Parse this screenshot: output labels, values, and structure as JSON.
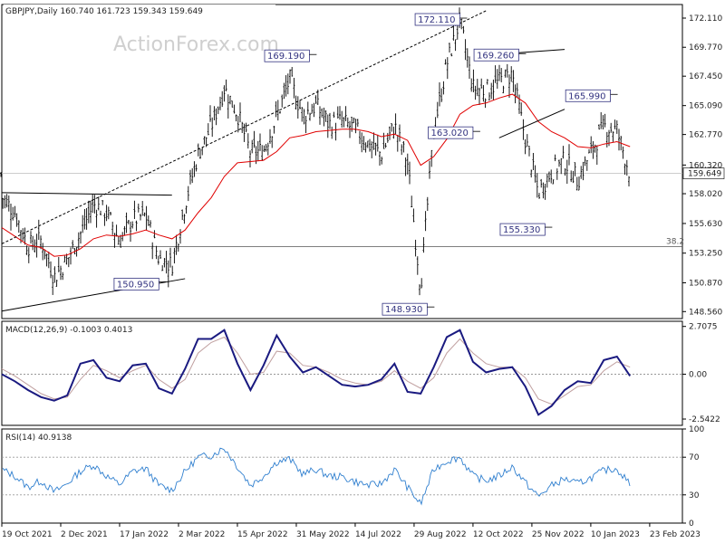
{
  "chart_data": [
    {
      "type": "ohlc",
      "title": "GBPJPY,Daily",
      "ohlc_readout": "160.740 161.723 159.343 159.649",
      "watermark": "ActionForex.com",
      "price_axis": {
        "ylim": [
          148.0,
          173.2
        ],
        "ticks": [
          "172.110",
          "169.770",
          "167.450",
          "165.090",
          "162.770",
          "160.320",
          "158.020",
          "155.630",
          "153.250",
          "150.870",
          "148.560"
        ],
        "last_price": "159.649"
      },
      "fib_label": "38.2",
      "fib_level": 153.78,
      "last_price_line": 159.649,
      "annotations": [
        {
          "label": "172.110",
          "value": 172.11,
          "date_index": 35
        },
        {
          "label": "169.190",
          "value": 169.19,
          "date_index": 23.5
        },
        {
          "label": "169.260",
          "value": 169.26,
          "date_index": 39.5
        },
        {
          "label": "165.990",
          "value": 165.99,
          "date_index": 46.5
        },
        {
          "label": "163.020",
          "value": 163.02,
          "date_index": 36
        },
        {
          "label": "155.330",
          "value": 155.33,
          "date_index": 41.5
        },
        {
          "label": "150.950",
          "value": 150.95,
          "date_index": 12
        },
        {
          "label": "148.930",
          "value": 148.93,
          "date_index": 32.5
        }
      ],
      "close_path": [
        [
          0,
          157.8
        ],
        [
          1,
          156.5
        ],
        [
          2,
          153.8
        ],
        [
          3,
          154.3
        ],
        [
          4,
          151.3
        ],
        [
          5,
          152.7
        ],
        [
          6,
          154.8
        ],
        [
          7,
          157.2
        ],
        [
          8,
          156.5
        ],
        [
          9,
          154.2
        ],
        [
          10,
          155.9
        ],
        [
          11,
          156.3
        ],
        [
          12,
          152.8
        ],
        [
          13,
          152.3
        ],
        [
          14,
          157.2
        ],
        [
          15,
          161.2
        ],
        [
          16,
          163.4
        ],
        [
          17,
          166.5
        ],
        [
          18,
          164.5
        ],
        [
          19,
          161.3
        ],
        [
          20,
          161.5
        ],
        [
          21,
          164.2
        ],
        [
          22,
          167.2
        ],
        [
          23,
          164.3
        ],
        [
          24,
          165.1
        ],
        [
          25,
          163.6
        ],
        [
          26,
          163.8
        ],
        [
          27,
          163.2
        ],
        [
          28,
          162.0
        ],
        [
          29,
          161.2
        ],
        [
          30,
          163.5
        ],
        [
          31,
          160.5
        ],
        [
          32,
          150.5
        ],
        [
          33,
          163.0
        ],
        [
          34,
          168.4
        ],
        [
          35,
          171.9
        ],
        [
          36,
          166.5
        ],
        [
          37,
          166.3
        ],
        [
          38,
          167.0
        ],
        [
          39,
          167.6
        ],
        [
          40,
          162.4
        ],
        [
          41,
          158.1
        ],
        [
          42,
          159.8
        ],
        [
          43,
          160.7
        ],
        [
          44,
          159.1
        ],
        [
          45,
          161.3
        ],
        [
          46,
          163.4
        ],
        [
          47,
          163.1
        ],
        [
          48,
          159.6
        ]
      ],
      "ema_path": [
        [
          0,
          155.3
        ],
        [
          1,
          154.6
        ],
        [
          2,
          153.9
        ],
        [
          3,
          153.7
        ],
        [
          4,
          153.0
        ],
        [
          5,
          153.1
        ],
        [
          6,
          153.6
        ],
        [
          7,
          154.4
        ],
        [
          8,
          154.7
        ],
        [
          9,
          154.6
        ],
        [
          10,
          154.8
        ],
        [
          11,
          155.1
        ],
        [
          12,
          154.7
        ],
        [
          13,
          154.4
        ],
        [
          14,
          155.1
        ],
        [
          15,
          156.5
        ],
        [
          16,
          157.7
        ],
        [
          17,
          159.4
        ],
        [
          18,
          160.5
        ],
        [
          19,
          160.6
        ],
        [
          20,
          160.7
        ],
        [
          21,
          161.4
        ],
        [
          22,
          162.5
        ],
        [
          23,
          162.7
        ],
        [
          24,
          163.0
        ],
        [
          25,
          163.1
        ],
        [
          26,
          163.2
        ],
        [
          27,
          163.2
        ],
        [
          28,
          163.0
        ],
        [
          29,
          162.6
        ],
        [
          30,
          162.8
        ],
        [
          31,
          162.3
        ],
        [
          32,
          160.3
        ],
        [
          33,
          161.0
        ],
        [
          34,
          162.4
        ],
        [
          35,
          164.4
        ],
        [
          36,
          165.1
        ],
        [
          37,
          165.3
        ],
        [
          38,
          165.7
        ],
        [
          39,
          166.0
        ],
        [
          40,
          165.3
        ],
        [
          41,
          163.8
        ],
        [
          42,
          163.0
        ],
        [
          43,
          162.5
        ],
        [
          44,
          161.8
        ],
        [
          45,
          161.7
        ],
        [
          46,
          162.0
        ],
        [
          47,
          162.2
        ],
        [
          48,
          161.8
        ]
      ],
      "trendlines": [
        {
          "name": "rising-channel-upper",
          "points": [
            [
              0,
              154.0
            ],
            [
              37,
              172.7
            ]
          ],
          "style": "dashed"
        },
        {
          "name": "triangle-upper",
          "points": [
            [
              0,
              158.1
            ],
            [
              13,
              157.9
            ]
          ],
          "style": "solid"
        },
        {
          "name": "triangle-lower",
          "points": [
            [
              0,
              148.6
            ],
            [
              14,
              151.2
            ]
          ],
          "style": "solid"
        },
        {
          "name": "wedge-upper",
          "points": [
            [
              39,
              169.3
            ],
            [
              43,
              169.6
            ]
          ],
          "style": "solid"
        },
        {
          "name": "wedge-lower",
          "points": [
            [
              38,
              162.5
            ],
            [
              43,
              164.8
            ]
          ],
          "style": "solid"
        }
      ],
      "x_axis": {
        "labels": [
          "19 Oct 2021",
          "2 Dec 2021",
          "17 Jan 2022",
          "2 Mar 2022",
          "15 Apr 2022",
          "31 May 2022",
          "14 Jul 2022",
          "29 Aug 2022",
          "12 Oct 2022",
          "25 Nov 2022",
          "10 Jan 2023",
          "23 Feb 2023"
        ],
        "label_indices": [
          0,
          4.5,
          9,
          13.5,
          18,
          22.5,
          27,
          31.5,
          36,
          40.5,
          45,
          49.5
        ],
        "domain": [
          0,
          52
        ]
      }
    },
    {
      "type": "line",
      "title": "MACD(12,26,9) -0.1003 0.4013",
      "ylim": [
        -2.9,
        3.0
      ],
      "ticks": [
        "2.7075",
        "0.00",
        "-2.5422"
      ],
      "zero_label": "0.00",
      "series": [
        {
          "name": "MACD",
          "color": "#1a1a80",
          "values": [
            [
              0,
              0.0
            ],
            [
              1,
              -0.4
            ],
            [
              2,
              -0.9
            ],
            [
              3,
              -1.3
            ],
            [
              4,
              -1.5
            ],
            [
              5,
              -1.2
            ],
            [
              6,
              0.6
            ],
            [
              7,
              0.8
            ],
            [
              8,
              -0.2
            ],
            [
              9,
              -0.4
            ],
            [
              10,
              0.5
            ],
            [
              11,
              0.6
            ],
            [
              12,
              -0.8
            ],
            [
              13,
              -1.1
            ],
            [
              14,
              0.3
            ],
            [
              15,
              2.0
            ],
            [
              16,
              2.0
            ],
            [
              17,
              2.5
            ],
            [
              18,
              0.6
            ],
            [
              19,
              -0.9
            ],
            [
              20,
              0.5
            ],
            [
              21,
              2.2
            ],
            [
              22,
              1.0
            ],
            [
              23,
              0.1
            ],
            [
              24,
              0.4
            ],
            [
              25,
              -0.1
            ],
            [
              26,
              -0.6
            ],
            [
              27,
              -0.7
            ],
            [
              28,
              -0.6
            ],
            [
              29,
              -0.3
            ],
            [
              30,
              0.6
            ],
            [
              31,
              -1.0
            ],
            [
              32,
              -1.1
            ],
            [
              33,
              0.4
            ],
            [
              34,
              2.1
            ],
            [
              35,
              2.5
            ],
            [
              36,
              0.7
            ],
            [
              37,
              0.1
            ],
            [
              38,
              0.3
            ],
            [
              39,
              0.4
            ],
            [
              40,
              -0.7
            ],
            [
              41,
              -2.3
            ],
            [
              42,
              -1.8
            ],
            [
              43,
              -0.9
            ],
            [
              44,
              -0.4
            ],
            [
              45,
              -0.5
            ],
            [
              46,
              0.8
            ],
            [
              47,
              1.0
            ],
            [
              48,
              -0.1
            ]
          ]
        },
        {
          "name": "Signal",
          "color": "#c0a0a0",
          "values": [
            [
              0,
              0.3
            ],
            [
              1,
              -0.1
            ],
            [
              2,
              -0.6
            ],
            [
              3,
              -1.1
            ],
            [
              4,
              -1.4
            ],
            [
              5,
              -1.3
            ],
            [
              6,
              -0.3
            ],
            [
              7,
              0.5
            ],
            [
              8,
              0.2
            ],
            [
              9,
              -0.2
            ],
            [
              10,
              0.2
            ],
            [
              11,
              0.5
            ],
            [
              12,
              -0.3
            ],
            [
              13,
              -0.8
            ],
            [
              14,
              -0.3
            ],
            [
              15,
              1.2
            ],
            [
              16,
              1.8
            ],
            [
              17,
              2.1
            ],
            [
              18,
              1.2
            ],
            [
              19,
              0.0
            ],
            [
              20,
              0.1
            ],
            [
              21,
              1.3
            ],
            [
              22,
              1.2
            ],
            [
              23,
              0.5
            ],
            [
              24,
              0.4
            ],
            [
              25,
              0.1
            ],
            [
              26,
              -0.3
            ],
            [
              27,
              -0.5
            ],
            [
              28,
              -0.6
            ],
            [
              29,
              -0.4
            ],
            [
              30,
              0.2
            ],
            [
              31,
              -0.4
            ],
            [
              32,
              -0.8
            ],
            [
              33,
              -0.2
            ],
            [
              34,
              1.2
            ],
            [
              35,
              2.0
            ],
            [
              36,
              1.2
            ],
            [
              37,
              0.6
            ],
            [
              38,
              0.4
            ],
            [
              39,
              0.4
            ],
            [
              40,
              -0.2
            ],
            [
              41,
              -1.4
            ],
            [
              42,
              -1.7
            ],
            [
              43,
              -1.2
            ],
            [
              44,
              -0.7
            ],
            [
              45,
              -0.6
            ],
            [
              46,
              0.2
            ],
            [
              47,
              0.7
            ],
            [
              48,
              0.4
            ]
          ]
        }
      ]
    },
    {
      "type": "line",
      "title": "RSI(14) 40.9138",
      "ylim": [
        0,
        100
      ],
      "ticks": [
        "100",
        "70",
        "30",
        "0"
      ],
      "levels": [
        70,
        30
      ],
      "series": [
        {
          "name": "RSI",
          "color": "#2f7fcf",
          "values": [
            [
              0,
              57
            ],
            [
              1,
              50
            ],
            [
              2,
              38
            ],
            [
              3,
              45
            ],
            [
              4,
              33
            ],
            [
              5,
              42
            ],
            [
              6,
              55
            ],
            [
              7,
              62
            ],
            [
              8,
              50
            ],
            [
              9,
              41
            ],
            [
              10,
              55
            ],
            [
              11,
              58
            ],
            [
              12,
              40
            ],
            [
              13,
              35
            ],
            [
              14,
              55
            ],
            [
              15,
              70
            ],
            [
              16,
              72
            ],
            [
              17,
              80
            ],
            [
              18,
              60
            ],
            [
              19,
              40
            ],
            [
              20,
              50
            ],
            [
              21,
              65
            ],
            [
              22,
              68
            ],
            [
              23,
              52
            ],
            [
              24,
              57
            ],
            [
              25,
              50
            ],
            [
              26,
              49
            ],
            [
              27,
              44
            ],
            [
              28,
              40
            ],
            [
              29,
              42
            ],
            [
              30,
              57
            ],
            [
              31,
              38
            ],
            [
              32,
              20
            ],
            [
              33,
              57
            ],
            [
              34,
              66
            ],
            [
              35,
              70
            ],
            [
              36,
              50
            ],
            [
              37,
              45
            ],
            [
              38,
              50
            ],
            [
              39,
              60
            ],
            [
              40,
              43
            ],
            [
              41,
              28
            ],
            [
              42,
              40
            ],
            [
              43,
              47
            ],
            [
              44,
              42
            ],
            [
              45,
              48
            ],
            [
              46,
              56
            ],
            [
              47,
              58
            ],
            [
              48,
              41
            ]
          ]
        }
      ]
    }
  ]
}
